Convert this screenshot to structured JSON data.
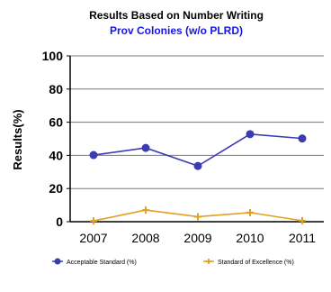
{
  "chart_data": {
    "type": "line",
    "title": "Results Based on Number Writing",
    "subtitle": "Prov Colonies (w/o PLRD)",
    "xlabel": "",
    "ylabel": "Results(%)",
    "categories": [
      "2007",
      "2008",
      "2009",
      "2010",
      "2011"
    ],
    "ylim": [
      0,
      100
    ],
    "yticks": [
      "0",
      "20",
      "40",
      "60",
      "80",
      "100"
    ],
    "grid": true,
    "legend_position": "bottom",
    "series": [
      {
        "name": "Acceptable Standard (%)",
        "values": [
          40.2,
          44.5,
          33.6,
          52.8,
          50.2
        ],
        "color": "#3b3bb3",
        "marker": "circle"
      },
      {
        "name": "Standard of Excellence (%)",
        "values": [
          0.5,
          7.0,
          3.0,
          5.5,
          0.6
        ],
        "color": "#e0a020",
        "marker": "plus"
      }
    ],
    "colors": {
      "title": "#000000",
      "subtitle": "#1515e8",
      "axis": "#000000",
      "grid": "#777777"
    }
  }
}
